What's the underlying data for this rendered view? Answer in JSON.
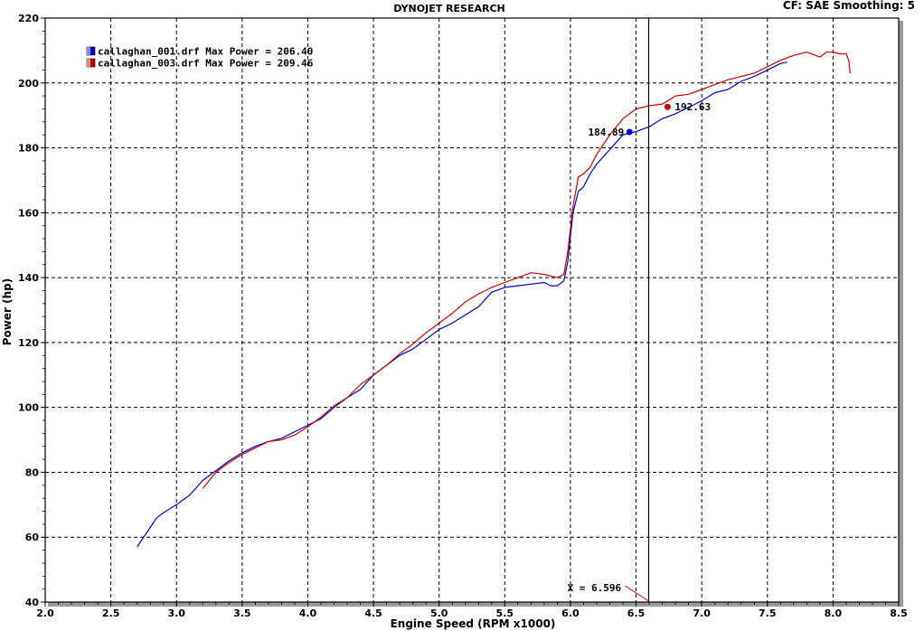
{
  "header": {
    "title": "DYNOJET RESEARCH",
    "settings": "CF: SAE  Smoothing: 5"
  },
  "chart_data": {
    "type": "line",
    "title": "DYNOJET RESEARCH",
    "xlabel": "Engine Speed (RPM x1000)",
    "ylabel": "Power (hp)",
    "xlim": [
      2.0,
      8.5
    ],
    "ylim": [
      40,
      220
    ],
    "x_ticks": [
      "2.0",
      "2.5",
      "3.0",
      "3.5",
      "4.0",
      "4.5",
      "5.0",
      "5.5",
      "6.0",
      "6.5",
      "7.0",
      "7.5",
      "8.0",
      "8.5"
    ],
    "y_ticks": [
      "40",
      "60",
      "80",
      "100",
      "120",
      "140",
      "160",
      "180",
      "200",
      "220"
    ],
    "grid": true,
    "legend_position": "top-left",
    "series": [
      {
        "name": "callaghan_001.drf Max Power = 206.40",
        "color": "#0000cc",
        "x": [
          2.7,
          2.75,
          2.8,
          2.85,
          2.9,
          3.0,
          3.1,
          3.2,
          3.3,
          3.4,
          3.5,
          3.6,
          3.7,
          3.8,
          3.9,
          4.0,
          4.1,
          4.2,
          4.3,
          4.4,
          4.5,
          4.6,
          4.7,
          4.8,
          4.9,
          5.0,
          5.1,
          5.2,
          5.3,
          5.4,
          5.5,
          5.6,
          5.7,
          5.8,
          5.85,
          5.9,
          5.95,
          5.98,
          6.02,
          6.06,
          6.1,
          6.15,
          6.2,
          6.3,
          6.4,
          6.5,
          6.6,
          6.7,
          6.8,
          6.9,
          7.0,
          7.1,
          7.2,
          7.3,
          7.4,
          7.5,
          7.6,
          7.65
        ],
        "y": [
          57,
          60,
          63,
          66,
          67.5,
          70,
          73,
          77.5,
          80.5,
          83.5,
          86,
          88,
          89.5,
          90.5,
          92.5,
          94.5,
          96.5,
          100,
          103,
          105.5,
          110,
          113,
          116,
          118,
          121,
          124,
          126,
          128.5,
          131,
          135.5,
          137,
          137.5,
          138,
          138.5,
          137.5,
          137.5,
          139,
          145,
          160,
          166.5,
          168,
          172,
          175,
          179.5,
          184,
          185,
          186.5,
          189,
          190.5,
          192.5,
          194.5,
          197,
          198,
          200.5,
          202,
          204,
          206,
          206.4
        ]
      },
      {
        "name": "callaghan_003.drf Max Power = 209.46",
        "color": "#cc0000",
        "x": [
          3.2,
          3.3,
          3.4,
          3.5,
          3.6,
          3.7,
          3.8,
          3.9,
          4.0,
          4.1,
          4.2,
          4.3,
          4.4,
          4.5,
          4.6,
          4.7,
          4.8,
          4.9,
          5.0,
          5.1,
          5.2,
          5.3,
          5.4,
          5.5,
          5.6,
          5.7,
          5.8,
          5.9,
          5.95,
          5.98,
          6.02,
          6.06,
          6.1,
          6.15,
          6.2,
          6.3,
          6.4,
          6.5,
          6.6,
          6.7,
          6.8,
          6.9,
          7.0,
          7.1,
          7.2,
          7.3,
          7.4,
          7.5,
          7.6,
          7.7,
          7.8,
          7.9,
          7.95,
          8.0,
          8.05,
          8.1,
          8.12,
          8.13
        ],
        "y": [
          75,
          80,
          83,
          85.5,
          87.5,
          89.5,
          90,
          91.5,
          94,
          97,
          100.5,
          103,
          107,
          110,
          113,
          116.5,
          119.5,
          123,
          126,
          129,
          132.5,
          135,
          137,
          138.5,
          140,
          141.5,
          141,
          140,
          141,
          148,
          162,
          171,
          172,
          174,
          178,
          184,
          189,
          192,
          193,
          193.5,
          196,
          196.5,
          198,
          199.5,
          201,
          202,
          203,
          205,
          207,
          208.5,
          209.5,
          208,
          209.5,
          209.5,
          209,
          209,
          207,
          203
        ]
      }
    ],
    "annotations": [
      {
        "label": "184.89",
        "x": 6.45,
        "y": 184.89,
        "series": "callaghan_001.drf Max Power = 206.40"
      },
      {
        "label": "192.63",
        "x": 6.74,
        "y": 192.63,
        "series": "callaghan_003.drf Max Power = 209.46"
      }
    ],
    "cursor": {
      "label": "X = 6.596",
      "x": 6.596
    }
  }
}
